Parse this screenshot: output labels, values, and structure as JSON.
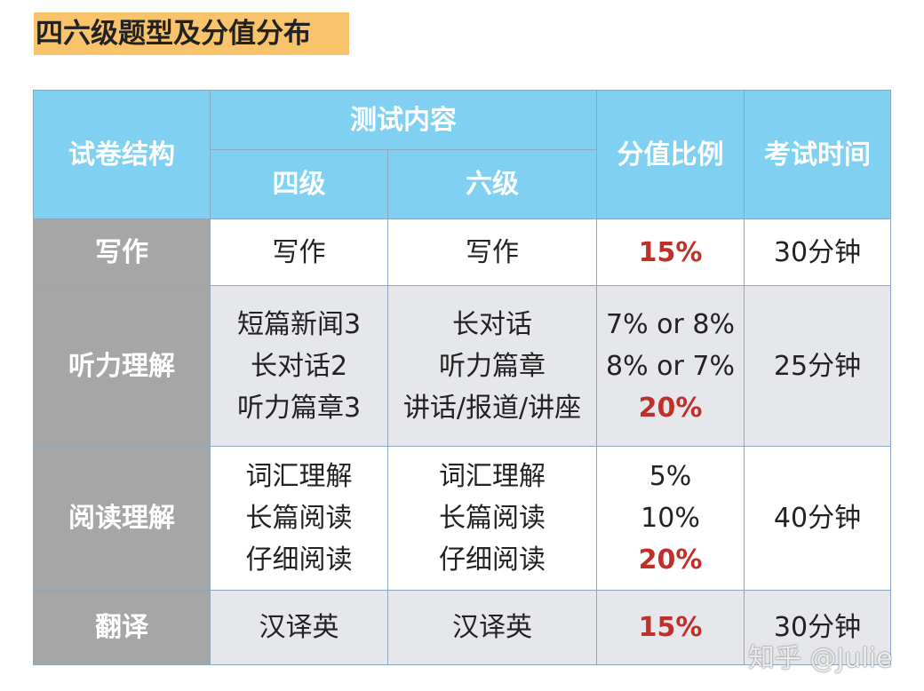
{
  "title": "四六级题型及分值分布",
  "table": {
    "header": {
      "structure": "试卷结构",
      "content": "测试内容",
      "cet4": "四级",
      "cet6": "六级",
      "ratio": "分值比例",
      "time": "考试时间"
    },
    "rows": [
      {
        "section": "写作",
        "cet4": [
          "写作"
        ],
        "cet6": [
          "写作"
        ],
        "ratio_items": [],
        "ratio_total": "15%",
        "time": "30分钟"
      },
      {
        "section": "听力理解",
        "cet4": [
          "短篇新闻3",
          "长对话2",
          "听力篇章3"
        ],
        "cet6": [
          "长对话",
          "听力篇章",
          "讲话/报道/讲座"
        ],
        "ratio_items": [
          "7% or 8%",
          "8% or 7%"
        ],
        "ratio_total": "20%",
        "time": "25分钟"
      },
      {
        "section": "阅读理解",
        "cet4": [
          "词汇理解",
          "长篇阅读",
          "仔细阅读"
        ],
        "cet6": [
          "词汇理解",
          "长篇阅读",
          "仔细阅读"
        ],
        "ratio_items": [
          "5%",
          "10%"
        ],
        "ratio_total": "20%",
        "time": "40分钟"
      },
      {
        "section": "翻译",
        "cet4": [
          "汉译英"
        ],
        "cet6": [
          "汉译英"
        ],
        "ratio_items": [],
        "ratio_total": "15%",
        "time": "30分钟"
      }
    ]
  },
  "watermark": "知乎 @Julie"
}
